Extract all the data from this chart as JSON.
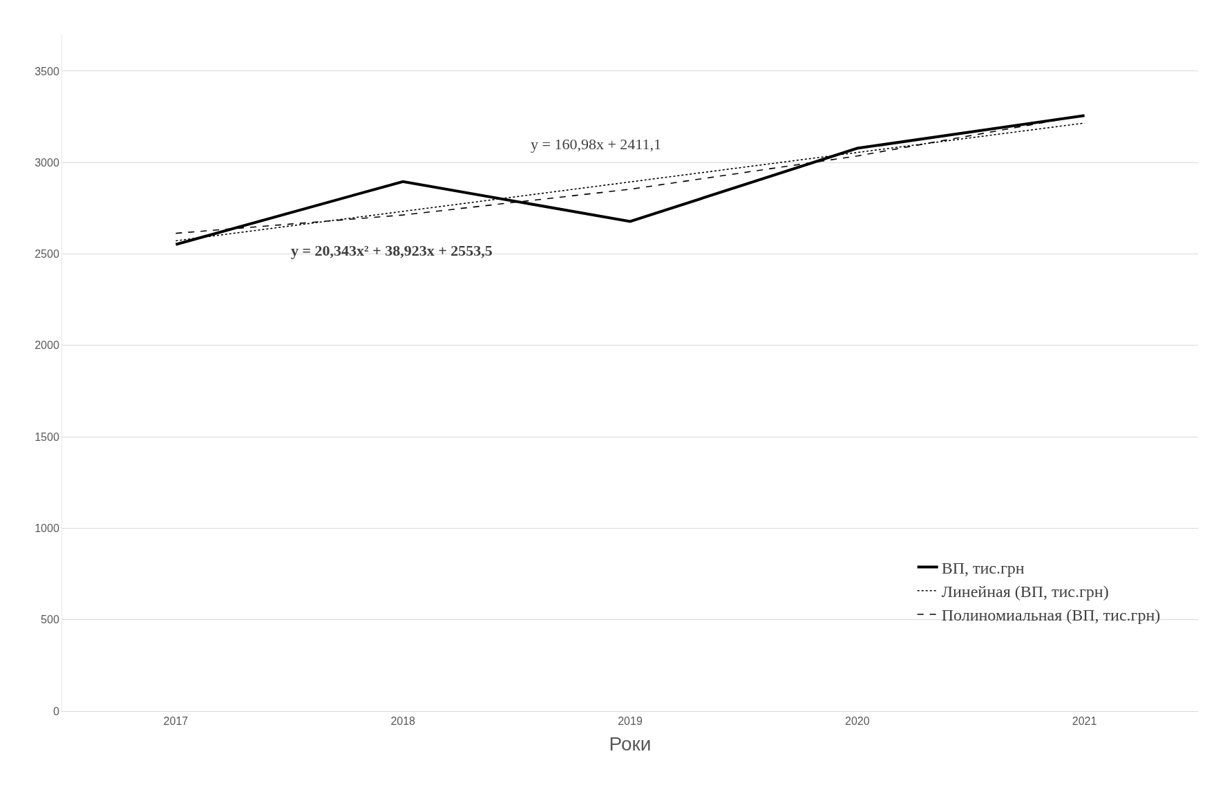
{
  "chart_data": {
    "type": "line",
    "xlabel": "Роки",
    "categories": [
      "2017",
      "2018",
      "2019",
      "2020",
      "2021"
    ],
    "series": [
      {
        "name": "ВП, тис.грн",
        "color": "#000000",
        "line_style": "solid",
        "values": [
          2552,
          2896,
          2678,
          3078,
          3257
        ]
      },
      {
        "name": "Линейная (ВП, тис.грн)",
        "color": "#000000",
        "line_style": "dotted",
        "values": [
          2572,
          2733,
          2894,
          3055,
          3216
        ]
      },
      {
        "name": "Полиномиальная (ВП, тис.грн)",
        "color": "#000000",
        "line_style": "dashed",
        "values": [
          2613,
          2713,
          2854,
          3036,
          3259
        ]
      }
    ],
    "ylim": [
      0,
      3700
    ],
    "yticks": [
      0,
      500,
      1000,
      1500,
      2000,
      2500,
      3000,
      3500
    ],
    "grid": "y",
    "legend": "bottom right",
    "marker": "none",
    "annotations": [
      "y = 160,98x + 2411,1",
      "y = 20,343x² + 38,923x + 2553,5"
    ]
  }
}
